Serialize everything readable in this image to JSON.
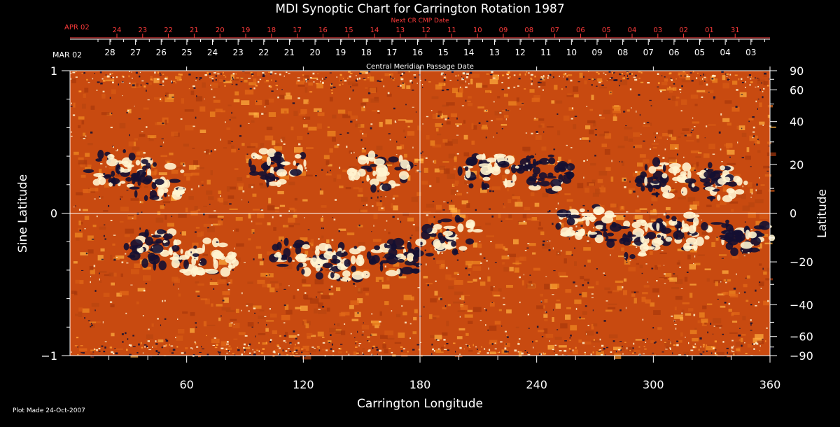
{
  "chart_data": {
    "type": "heatmap",
    "title": "MDI Synoptic Chart for Carrington Rotation 1987",
    "xlabel": "Carrington Longitude",
    "ylabel_left": "Sine Latitude",
    "ylabel_right": "Latitude",
    "xlim": [
      0,
      360
    ],
    "ylim": [
      -1,
      1
    ],
    "x_ticks": [
      60,
      120,
      180,
      240,
      300,
      360
    ],
    "x_minor_ticks": [
      20,
      40,
      80,
      100,
      140,
      160,
      200,
      220,
      260,
      280,
      320,
      340
    ],
    "left_y_ticks": [
      {
        "value": 1,
        "label": "1"
      },
      {
        "value": 0,
        "label": "0"
      },
      {
        "value": -1,
        "label": "−1"
      }
    ],
    "right_lat_ticks": [
      {
        "lat": 90,
        "label": "90"
      },
      {
        "lat": 60,
        "label": "60"
      },
      {
        "lat": 40,
        "label": "40"
      },
      {
        "lat": 20,
        "label": "20"
      },
      {
        "lat": 0,
        "label": "0"
      },
      {
        "lat": -20,
        "label": "−20"
      },
      {
        "lat": -40,
        "label": "−40"
      },
      {
        "lat": -60,
        "label": "−60"
      },
      {
        "lat": -90,
        "label": "−90"
      }
    ],
    "right_lat_minor": [
      50,
      30,
      10,
      -10,
      -30,
      -50,
      -70,
      70
    ],
    "grid_lines": {
      "longitude": 180,
      "sine_latitude": 0
    },
    "cmp_axis": {
      "title": "Central Meridian Passage Date",
      "start_label": "MAR 02",
      "labels": [
        "28",
        "27",
        "26",
        "25",
        "24",
        "23",
        "22",
        "21",
        "20",
        "19",
        "18",
        "17",
        "16",
        "15",
        "14",
        "13",
        "12",
        "11",
        "10",
        "09",
        "08",
        "07",
        "06",
        "05",
        "04",
        "03"
      ]
    },
    "next_cr_axis": {
      "title": "Next CR CMP Date",
      "start_label": "APR 02",
      "labels": [
        "24",
        "23",
        "22",
        "21",
        "20",
        "19",
        "18",
        "17",
        "16",
        "15",
        "14",
        "13",
        "12",
        "11",
        "10",
        "09",
        "08",
        "07",
        "06",
        "05",
        "04",
        "03",
        "02",
        "01",
        "31"
      ]
    },
    "colors": {
      "background": "#000000",
      "field_base": "#c84a10",
      "field_mid": "#f07a1a",
      "positive": "#fff4d0",
      "negative": "#141032",
      "annotation_red": "#ff3b3b"
    },
    "active_regions": [
      {
        "lon": 25,
        "sinlat": 0.31,
        "polarity": "mixed"
      },
      {
        "lon": 45,
        "sinlat": 0.22,
        "polarity": "mixed"
      },
      {
        "lon": 108,
        "sinlat": 0.33,
        "polarity": "mixed"
      },
      {
        "lon": 160,
        "sinlat": 0.3,
        "polarity": "positive"
      },
      {
        "lon": 215,
        "sinlat": 0.3,
        "polarity": "mixed"
      },
      {
        "lon": 245,
        "sinlat": 0.28,
        "polarity": "negative"
      },
      {
        "lon": 305,
        "sinlat": 0.24,
        "polarity": "mixed"
      },
      {
        "lon": 335,
        "sinlat": 0.22,
        "polarity": "mixed"
      },
      {
        "lon": 45,
        "sinlat": -0.25,
        "polarity": "mixed"
      },
      {
        "lon": 70,
        "sinlat": -0.32,
        "polarity": "positive"
      },
      {
        "lon": 120,
        "sinlat": -0.3,
        "polarity": "mixed"
      },
      {
        "lon": 140,
        "sinlat": -0.35,
        "polarity": "mixed"
      },
      {
        "lon": 170,
        "sinlat": -0.3,
        "polarity": "negative"
      },
      {
        "lon": 195,
        "sinlat": -0.16,
        "polarity": "mixed"
      },
      {
        "lon": 265,
        "sinlat": -0.07,
        "polarity": "positive"
      },
      {
        "lon": 290,
        "sinlat": -0.18,
        "polarity": "mixed"
      },
      {
        "lon": 315,
        "sinlat": -0.12,
        "polarity": "mixed"
      },
      {
        "lon": 345,
        "sinlat": -0.15,
        "polarity": "negative"
      }
    ]
  },
  "footer": {
    "plot_made": "Plot Made 24-Oct-2007"
  }
}
